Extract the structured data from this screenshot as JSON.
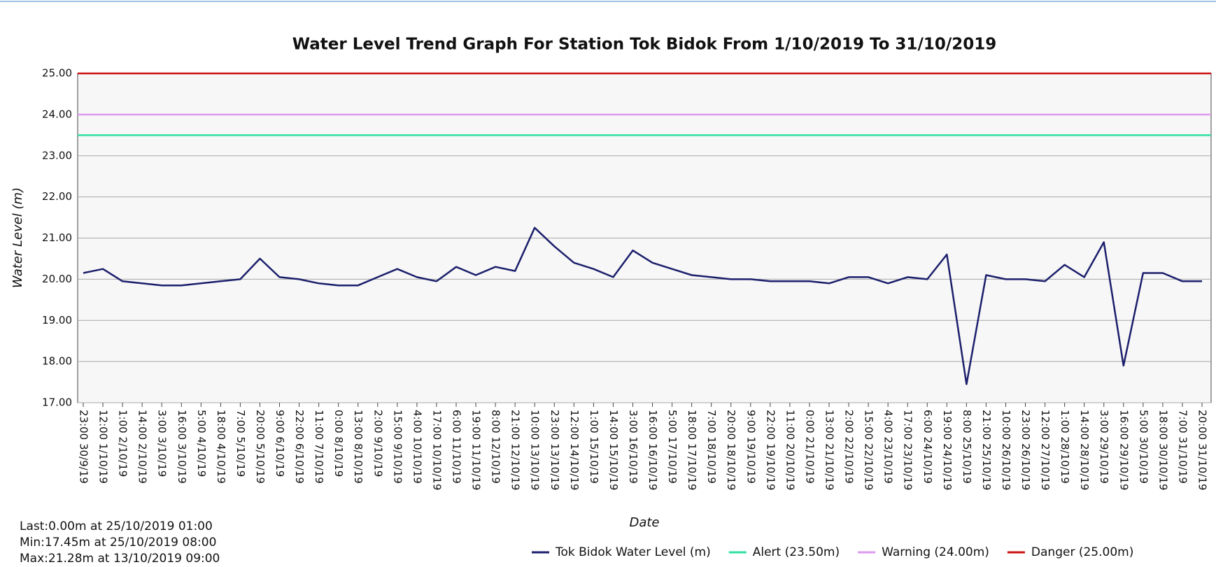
{
  "chart_data": {
    "type": "line",
    "title": "Water Level Trend Graph For Station Tok Bidok From 1/10/2019 To 31/10/2019",
    "xlabel": "Date",
    "ylabel": "Water Level (m)",
    "categories": [
      "23:00 30/9/19",
      "12:00 1/10/19",
      "1:00 2/10/19",
      "14:00 2/10/19",
      "3:00 3/10/19",
      "16:00 3/10/19",
      "5:00 4/10/19",
      "18:00 4/10/19",
      "7:00 5/10/19",
      "20:00 5/10/19",
      "9:00 6/10/19",
      "22:00 6/10/19",
      "11:00 7/10/19",
      "0:00 8/10/19",
      "13:00 8/10/19",
      "2:00 9/10/19",
      "15:00 9/10/19",
      "4:00 10/10/19",
      "17:00 10/10/19",
      "6:00 11/10/19",
      "19:00 11/10/19",
      "8:00 12/10/19",
      "21:00 12/10/19",
      "10:00 13/10/19",
      "23:00 13/10/19",
      "12:00 14/10/19",
      "1:00 15/10/19",
      "14:00 15/10/19",
      "3:00 16/10/19",
      "16:00 16/10/19",
      "5:00 17/10/19",
      "18:00 17/10/19",
      "7:00 18/10/19",
      "20:00 18/10/19",
      "9:00 19/10/19",
      "22:00 19/10/19",
      "11:00 20/10/19",
      "0:00 21/10/19",
      "13:00 21/10/19",
      "2:00 22/10/19",
      "15:00 22/10/19",
      "4:00 23/10/19",
      "17:00 23/10/19",
      "6:00 24/10/19",
      "19:00 24/10/19",
      "8:00 25/10/19",
      "21:00 25/10/19",
      "10:00 26/10/19",
      "23:00 26/10/19",
      "12:00 27/10/19",
      "1:00 28/10/19",
      "14:00 28/10/19",
      "3:00 29/10/19",
      "16:00 29/10/19",
      "5:00 30/10/19",
      "18:00 30/10/19",
      "7:00 31/10/19",
      "20:00 31/10/19"
    ],
    "series": [
      {
        "name": "Tok Bidok Water Level (m)",
        "color": "#1b1f6b",
        "values": [
          20.15,
          20.25,
          19.95,
          19.9,
          19.85,
          19.85,
          19.9,
          19.95,
          20.0,
          20.5,
          20.05,
          20.0,
          19.9,
          19.85,
          19.85,
          20.05,
          20.25,
          20.05,
          19.95,
          20.3,
          20.1,
          20.3,
          20.2,
          21.25,
          20.8,
          20.4,
          20.25,
          20.05,
          20.7,
          20.4,
          20.25,
          20.1,
          20.05,
          20.0,
          20.0,
          19.95,
          19.95,
          19.95,
          19.9,
          20.05,
          20.05,
          19.9,
          20.05,
          20.0,
          20.6,
          17.45,
          20.1,
          20.0,
          20.0,
          19.95,
          20.35,
          20.05,
          20.9,
          17.9,
          20.15,
          20.15,
          19.95,
          19.95
        ]
      }
    ],
    "thresholds": [
      {
        "name": "Alert (23.50m)",
        "value": 23.5,
        "color": "#2ee0a0"
      },
      {
        "name": "Warning (24.00m)",
        "value": 24.0,
        "color": "#dd99ee"
      },
      {
        "name": "Danger (25.00m)",
        "value": 25.0,
        "color": "#cc1111"
      }
    ],
    "ylim": [
      17,
      25
    ],
    "yticks": [
      {
        "value": 17,
        "label": "17.00"
      },
      {
        "value": 18,
        "label": "18.00"
      },
      {
        "value": 19,
        "label": "19.00"
      },
      {
        "value": 20,
        "label": "20.00"
      },
      {
        "value": 21,
        "label": "21.00"
      },
      {
        "value": 22,
        "label": "22.00"
      },
      {
        "value": 23,
        "label": "23.00"
      },
      {
        "value": 24,
        "label": "24.00"
      },
      {
        "value": 25,
        "label": "25.00"
      }
    ],
    "grid": true,
    "annotations": [
      "Last:0.00m at 25/10/2019 01:00",
      "Min:17.45m at 25/10/2019 08:00",
      "Max:21.28m at 13/10/2019 09:00"
    ]
  }
}
